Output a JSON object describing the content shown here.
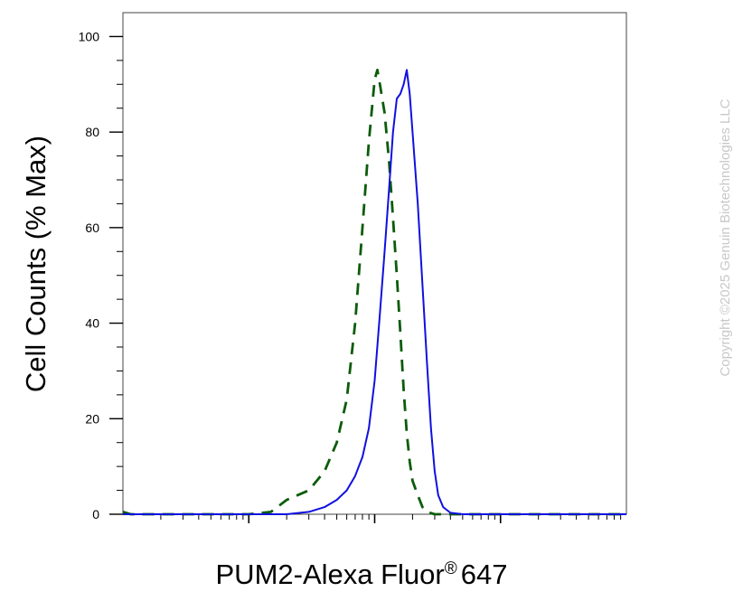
{
  "chart_data": {
    "type": "line",
    "title": "",
    "xlabel": "PUM2-Alexa Fluor",
    "xlabel_suffix": "647",
    "xlabel_mark": "®",
    "ylabel": "Cell Counts (% Max)",
    "x_scale": "log",
    "xlim": [
      10,
      100000
    ],
    "ylim": [
      0,
      105
    ],
    "y_ticks": [
      0,
      20,
      40,
      60,
      80,
      100
    ],
    "y_tick_labels": [
      "0",
      "20",
      "40",
      "60",
      "80",
      "100"
    ],
    "grid": false,
    "legend": "none",
    "watermark": "Copyright ©2025 Genuin Biotechnologies LLC",
    "series": [
      {
        "style": "dashed",
        "color": "#0b5c0b",
        "x": [
          10,
          11.5,
          15,
          50,
          100,
          150,
          200,
          300,
          400,
          500,
          600,
          700,
          800,
          900,
          1000,
          1050,
          1100,
          1200,
          1300,
          1400,
          1500,
          1600,
          1700,
          1800,
          1900,
          2000,
          2200,
          2400,
          2600,
          3000,
          3500,
          4000,
          5000,
          100000
        ],
        "y": [
          0.5,
          0,
          0,
          0,
          0,
          0.5,
          3,
          5,
          9,
          15,
          24,
          40,
          60,
          78,
          91,
          93,
          90,
          84,
          74,
          62,
          50,
          38,
          26,
          17,
          11,
          7,
          4,
          1.5,
          0.5,
          0,
          0,
          0,
          0,
          0
        ]
      },
      {
        "style": "solid",
        "color": "#1010e0",
        "x": [
          10,
          100,
          200,
          300,
          400,
          500,
          600,
          700,
          800,
          900,
          1000,
          1100,
          1200,
          1300,
          1400,
          1500,
          1600,
          1700,
          1800,
          1900,
          2000,
          2200,
          2400,
          2600,
          2800,
          3000,
          3200,
          3500,
          4000,
          5000,
          6000,
          8000,
          20000,
          100000
        ],
        "y": [
          0,
          0,
          0,
          0.5,
          1.5,
          3,
          5,
          8,
          12,
          18,
          28,
          42,
          55,
          68,
          80,
          87,
          88,
          90,
          93,
          88,
          80,
          65,
          48,
          32,
          18,
          9,
          4,
          1.5,
          0.3,
          0,
          0,
          0,
          0,
          0
        ]
      }
    ]
  }
}
